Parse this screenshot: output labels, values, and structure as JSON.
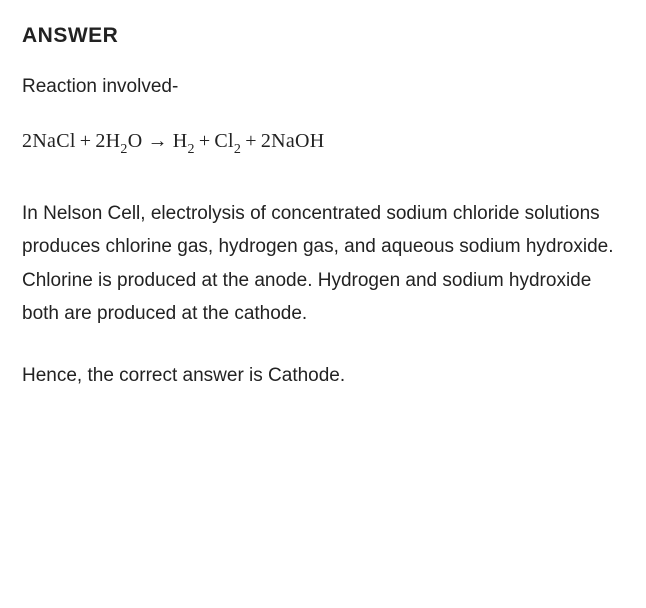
{
  "heading": "ANSWER",
  "intro": "Reaction involved-",
  "equation": {
    "reactant1_coef": "2",
    "reactant1": "NaCl",
    "reactant2_coef": "2",
    "reactant2_base": "H",
    "reactant2_sub": "2",
    "reactant2_tail": "O",
    "product1_base": "H",
    "product1_sub": "2",
    "product2_base": "Cl",
    "product2_sub": "2",
    "product3_coef": "2",
    "product3": "NaOH",
    "plus": "+",
    "arrow": "→"
  },
  "explanation": "In Nelson Cell, electrolysis of concentrated sodium chloride solutions produces chlorine gas, hydrogen gas, and aqueous sodium hydroxide. Chlorine is produced at the anode. Hydrogen and sodium hydroxide both are produced at the cathode.",
  "conclusion": "Hence, the correct answer is Cathode.",
  "colors": {
    "background": "#ffffff",
    "text": "#222222"
  },
  "typography": {
    "heading_fontsize": 21,
    "heading_weight": 700,
    "body_fontsize": 19,
    "body_weight": 400,
    "equation_fontsize": 20,
    "equation_font": "serif",
    "line_height": 1.75
  }
}
